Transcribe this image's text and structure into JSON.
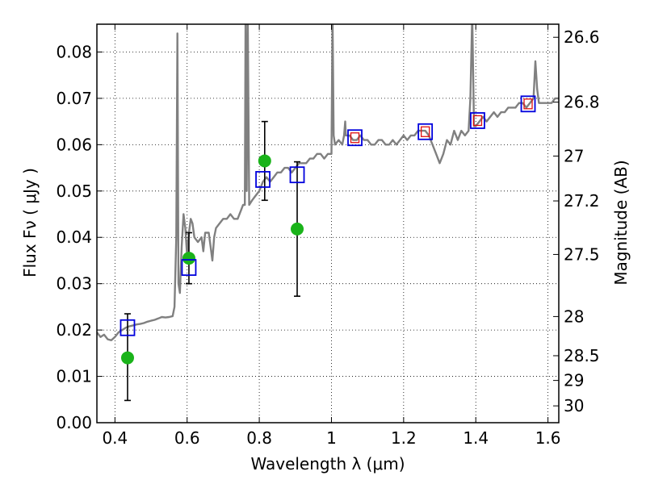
{
  "chart_data": {
    "type": "scatter",
    "xlabel": "Wavelength  λ (μm)",
    "ylabel": "Flux  Fν  ( μJy )",
    "ylabel_right": "Magnitude (AB)",
    "xlim": [
      0.35,
      1.63
    ],
    "ylim": [
      0.0,
      0.086
    ],
    "grid": true,
    "x_ticks": [
      0.4,
      0.6,
      0.8,
      1.0,
      1.2,
      1.4,
      1.6
    ],
    "x_tick_labels": [
      "0.4",
      "0.6",
      "0.8",
      "1",
      "1.2",
      "1.4",
      "1.6"
    ],
    "y_ticks": [
      0.0,
      0.01,
      0.02,
      0.03,
      0.04,
      0.05,
      0.06,
      0.07,
      0.08
    ],
    "y_tick_labels": [
      "0.00",
      "0.01",
      "0.02",
      "0.03",
      "0.04",
      "0.05",
      "0.06",
      "0.07",
      "0.08"
    ],
    "right_ticks": [
      26.6,
      26.8,
      27.0,
      27.2,
      27.5,
      28.0,
      28.5,
      29.0,
      30.0
    ],
    "right_tick_labels": [
      "26.6",
      "26.8",
      "27",
      "27.2",
      "27.5",
      "28",
      "28.5",
      "29",
      "30"
    ],
    "colors": {
      "spectrum": "#808080",
      "observed": "#1ab31a",
      "model": "#0000dd",
      "inner": "#e01010",
      "errorbar": "#000000"
    },
    "series": [
      {
        "kind": "line",
        "points": [
          [
            0.35,
            0.0195
          ],
          [
            0.36,
            0.0185
          ],
          [
            0.37,
            0.019
          ],
          [
            0.38,
            0.018
          ],
          [
            0.39,
            0.0178
          ],
          [
            0.4,
            0.0185
          ],
          [
            0.41,
            0.0195
          ],
          [
            0.42,
            0.02
          ],
          [
            0.43,
            0.0205
          ],
          [
            0.44,
            0.0208
          ],
          [
            0.45,
            0.021
          ],
          [
            0.46,
            0.0212
          ],
          [
            0.47,
            0.0213
          ],
          [
            0.48,
            0.0215
          ],
          [
            0.49,
            0.0218
          ],
          [
            0.5,
            0.022
          ],
          [
            0.51,
            0.0222
          ],
          [
            0.52,
            0.0225
          ],
          [
            0.53,
            0.0228
          ],
          [
            0.54,
            0.0227
          ],
          [
            0.55,
            0.0228
          ],
          [
            0.56,
            0.023
          ],
          [
            0.565,
            0.025
          ],
          [
            0.57,
            0.04
          ],
          [
            0.573,
            0.084
          ],
          [
            0.576,
            0.03
          ],
          [
            0.58,
            0.028
          ],
          [
            0.585,
            0.038
          ],
          [
            0.59,
            0.045
          ],
          [
            0.595,
            0.042
          ],
          [
            0.6,
            0.036
          ],
          [
            0.605,
            0.041
          ],
          [
            0.61,
            0.044
          ],
          [
            0.615,
            0.043
          ],
          [
            0.62,
            0.04
          ],
          [
            0.63,
            0.039
          ],
          [
            0.64,
            0.04
          ],
          [
            0.645,
            0.037
          ],
          [
            0.65,
            0.041
          ],
          [
            0.66,
            0.041
          ],
          [
            0.665,
            0.038
          ],
          [
            0.67,
            0.035
          ],
          [
            0.675,
            0.04
          ],
          [
            0.68,
            0.042
          ],
          [
            0.69,
            0.043
          ],
          [
            0.7,
            0.044
          ],
          [
            0.71,
            0.044
          ],
          [
            0.72,
            0.045
          ],
          [
            0.73,
            0.044
          ],
          [
            0.74,
            0.044
          ],
          [
            0.75,
            0.046
          ],
          [
            0.755,
            0.047
          ],
          [
            0.76,
            0.047
          ],
          [
            0.762,
            0.088
          ],
          [
            0.765,
            0.05
          ],
          [
            0.768,
            0.088
          ],
          [
            0.772,
            0.047
          ],
          [
            0.78,
            0.048
          ],
          [
            0.79,
            0.049
          ],
          [
            0.8,
            0.05
          ],
          [
            0.81,
            0.052
          ],
          [
            0.82,
            0.053
          ],
          [
            0.83,
            0.052
          ],
          [
            0.84,
            0.053
          ],
          [
            0.85,
            0.054
          ],
          [
            0.86,
            0.054
          ],
          [
            0.87,
            0.055
          ],
          [
            0.88,
            0.055
          ],
          [
            0.89,
            0.054
          ],
          [
            0.9,
            0.055
          ],
          [
            0.91,
            0.056
          ],
          [
            0.92,
            0.056
          ],
          [
            0.93,
            0.056
          ],
          [
            0.94,
            0.057
          ],
          [
            0.95,
            0.057
          ],
          [
            0.96,
            0.058
          ],
          [
            0.97,
            0.058
          ],
          [
            0.98,
            0.057
          ],
          [
            0.99,
            0.058
          ],
          [
            1.0,
            0.058
          ],
          [
            1.003,
            0.088
          ],
          [
            1.006,
            0.062
          ],
          [
            1.01,
            0.06
          ],
          [
            1.02,
            0.061
          ],
          [
            1.03,
            0.06
          ],
          [
            1.035,
            0.062
          ],
          [
            1.038,
            0.065
          ],
          [
            1.04,
            0.062
          ],
          [
            1.05,
            0.062
          ],
          [
            1.06,
            0.061
          ],
          [
            1.07,
            0.061
          ],
          [
            1.08,
            0.062
          ],
          [
            1.09,
            0.061
          ],
          [
            1.1,
            0.061
          ],
          [
            1.11,
            0.06
          ],
          [
            1.12,
            0.06
          ],
          [
            1.13,
            0.061
          ],
          [
            1.14,
            0.061
          ],
          [
            1.15,
            0.06
          ],
          [
            1.16,
            0.06
          ],
          [
            1.17,
            0.061
          ],
          [
            1.18,
            0.06
          ],
          [
            1.19,
            0.061
          ],
          [
            1.2,
            0.062
          ],
          [
            1.21,
            0.061
          ],
          [
            1.22,
            0.062
          ],
          [
            1.23,
            0.062
          ],
          [
            1.24,
            0.063
          ],
          [
            1.25,
            0.063
          ],
          [
            1.26,
            0.063
          ],
          [
            1.27,
            0.062
          ],
          [
            1.28,
            0.06
          ],
          [
            1.29,
            0.058
          ],
          [
            1.3,
            0.056
          ],
          [
            1.31,
            0.058
          ],
          [
            1.32,
            0.061
          ],
          [
            1.33,
            0.06
          ],
          [
            1.34,
            0.063
          ],
          [
            1.35,
            0.061
          ],
          [
            1.36,
            0.063
          ],
          [
            1.37,
            0.062
          ],
          [
            1.38,
            0.063
          ],
          [
            1.385,
            0.07
          ],
          [
            1.39,
            0.088
          ],
          [
            1.395,
            0.064
          ],
          [
            1.4,
            0.064
          ],
          [
            1.41,
            0.065
          ],
          [
            1.42,
            0.066
          ],
          [
            1.43,
            0.065
          ],
          [
            1.44,
            0.066
          ],
          [
            1.45,
            0.067
          ],
          [
            1.46,
            0.066
          ],
          [
            1.47,
            0.067
          ],
          [
            1.48,
            0.067
          ],
          [
            1.49,
            0.068
          ],
          [
            1.5,
            0.068
          ],
          [
            1.51,
            0.068
          ],
          [
            1.52,
            0.069
          ],
          [
            1.53,
            0.069
          ],
          [
            1.54,
            0.068
          ],
          [
            1.55,
            0.069
          ],
          [
            1.56,
            0.07
          ],
          [
            1.565,
            0.078
          ],
          [
            1.57,
            0.072
          ],
          [
            1.575,
            0.069
          ],
          [
            1.58,
            0.069
          ],
          [
            1.59,
            0.069
          ],
          [
            1.6,
            0.069
          ],
          [
            1.61,
            0.069
          ],
          [
            1.62,
            0.07
          ],
          [
            1.63,
            0.07
          ]
        ]
      },
      {
        "kind": "errorbar",
        "x": [
          0.435,
          0.605,
          0.815,
          0.905
        ],
        "y": [
          0.014,
          0.0355,
          0.0565,
          0.0418
        ],
        "yerr_low": [
          0.0092,
          0.0055,
          0.0085,
          0.0145
        ],
        "yerr_high": [
          0.0095,
          0.0055,
          0.0085,
          0.0145
        ]
      },
      {
        "kind": "squares",
        "x": [
          0.435,
          0.605,
          0.81,
          0.905,
          1.065,
          1.26,
          1.405,
          1.545
        ],
        "y": [
          0.0205,
          0.0335,
          0.0525,
          0.0535,
          0.0615,
          0.0628,
          0.0652,
          0.0688
        ]
      },
      {
        "kind": "inner_squares",
        "x": [
          1.065,
          1.26,
          1.405,
          1.545
        ],
        "y": [
          0.0615,
          0.0628,
          0.0652,
          0.0688
        ]
      }
    ]
  }
}
